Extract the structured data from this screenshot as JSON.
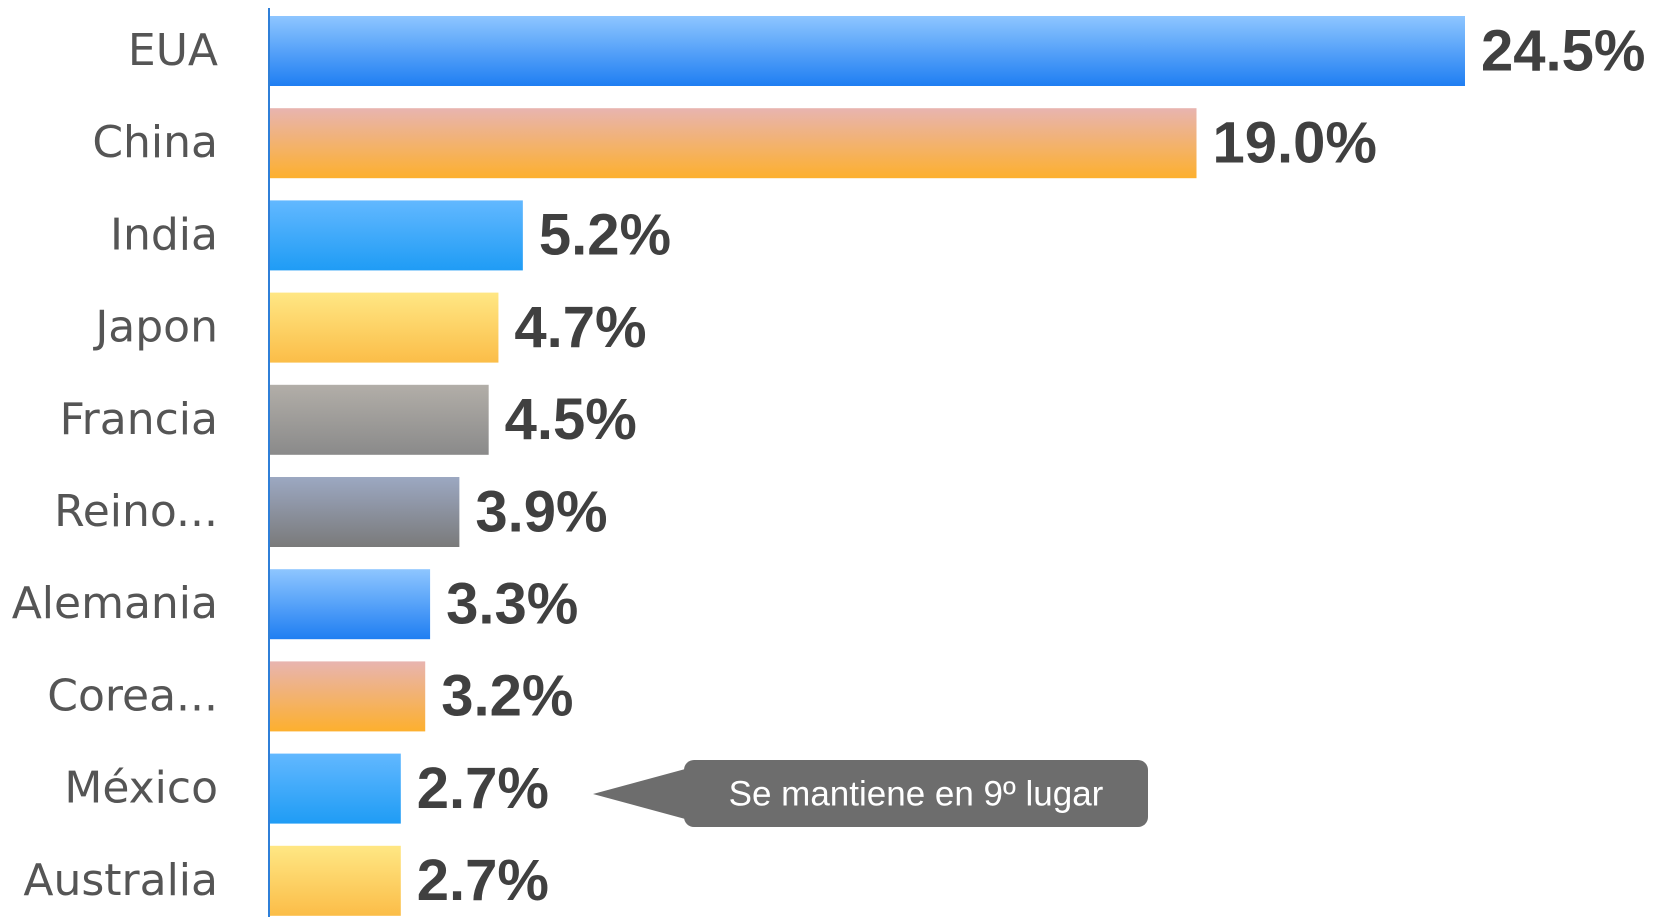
{
  "chart_data": {
    "type": "bar",
    "orientation": "horizontal",
    "categories": [
      "EUA",
      "China",
      "India",
      "Japon",
      "Francia",
      "Reino...",
      "Alemania",
      "Corea...",
      "México",
      "Australia"
    ],
    "values": [
      24.5,
      19.0,
      5.2,
      4.7,
      4.5,
      3.9,
      3.3,
      3.2,
      2.7,
      2.7
    ],
    "value_labels": [
      "24.5%",
      "19.0%",
      "5.2%",
      "4.7%",
      "4.5%",
      "3.9%",
      "3.3%",
      "3.2%",
      "2.7%",
      "2.7%"
    ],
    "colors": [
      [
        "#8ec6ff",
        "#1f7ef2"
      ],
      [
        "#e8b4b0",
        "#fdb02e"
      ],
      [
        "#62b8ff",
        "#1f9cf5"
      ],
      [
        "#ffe784",
        "#fbbd48"
      ],
      [
        "#b2aea8",
        "#8a8a8a"
      ],
      [
        "#9ca8c2",
        "#7a7a7a"
      ],
      [
        "#8ec6ff",
        "#1f7ef2"
      ],
      [
        "#e8b4b0",
        "#fdb02e"
      ],
      [
        "#62b8ff",
        "#1f9cf5"
      ],
      [
        "#ffe784",
        "#fbbd48"
      ]
    ],
    "annotation": "Se mantiene en 9º lugar"
  }
}
